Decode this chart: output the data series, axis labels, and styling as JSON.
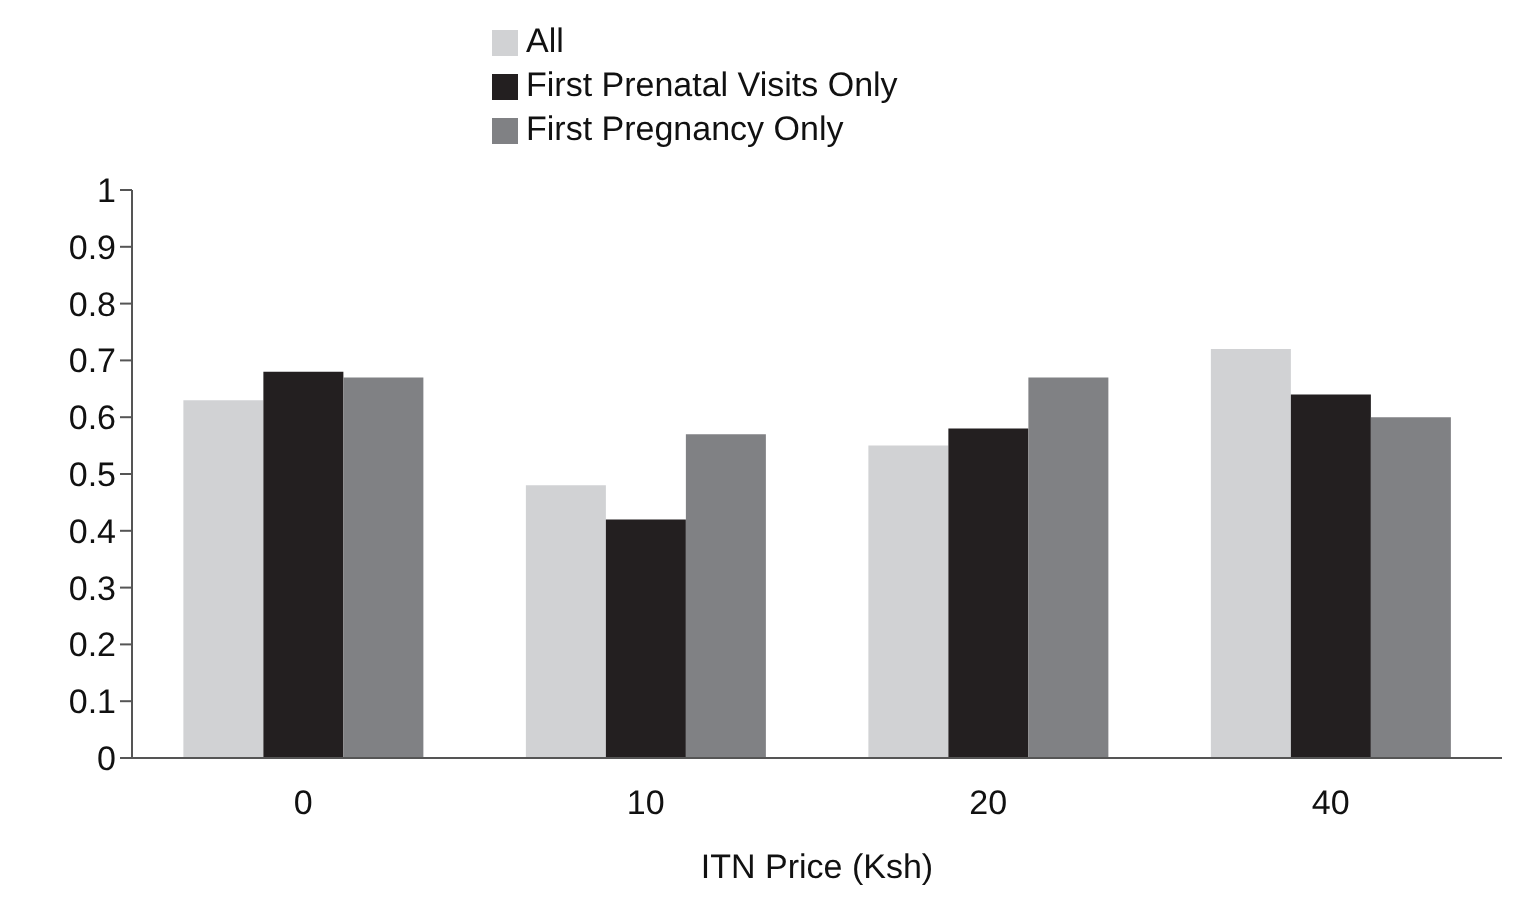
{
  "chart_data": {
    "type": "bar",
    "xlabel": "ITN Price (Ksh)",
    "categories": [
      "0",
      "10",
      "20",
      "40"
    ],
    "series": [
      {
        "name": "All",
        "color": "#d1d2d4",
        "values": [
          0.63,
          0.48,
          0.55,
          0.72
        ]
      },
      {
        "name": "First Prenatal Visits Only",
        "color": "#231f20",
        "values": [
          0.68,
          0.42,
          0.58,
          0.64
        ]
      },
      {
        "name": "First Pregnancy Only",
        "color": "#808184",
        "values": [
          0.67,
          0.57,
          0.67,
          0.6
        ]
      }
    ],
    "ylim": [
      0,
      1
    ],
    "yticks": [
      0,
      0.1,
      0.2,
      0.3,
      0.4,
      0.5,
      0.6,
      0.7,
      0.8,
      0.9,
      1
    ],
    "grid": false,
    "legend": "top"
  }
}
